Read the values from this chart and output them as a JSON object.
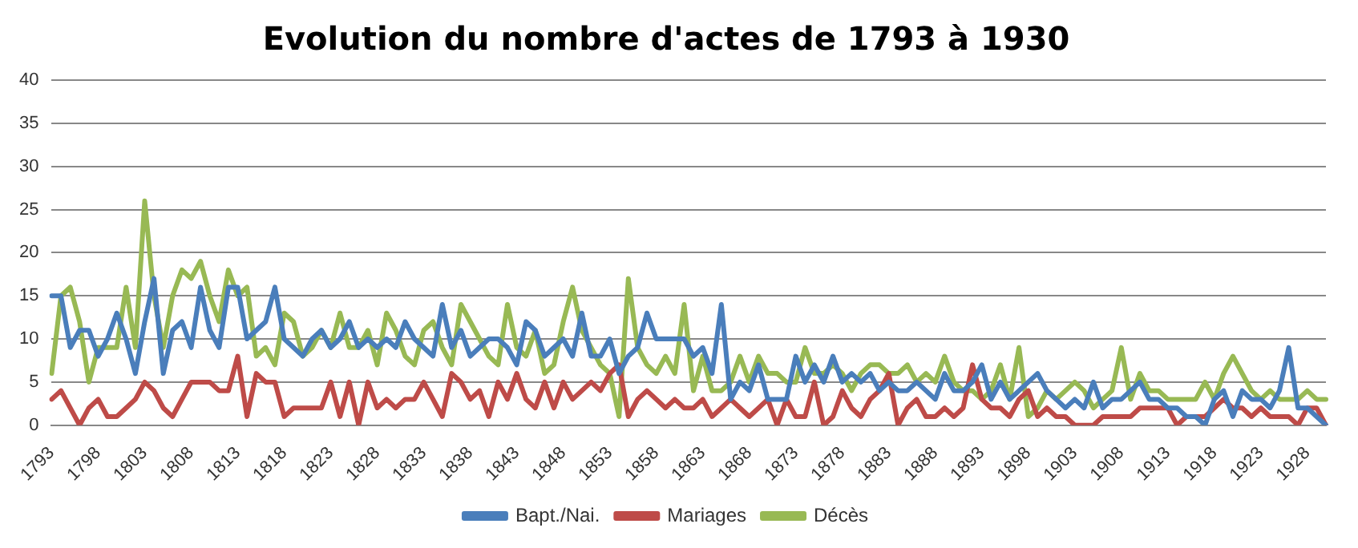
{
  "chart_data": {
    "type": "line",
    "title": "Evolution du nombre d'actes de 1793 à 1930",
    "categories": [
      "1793",
      null,
      null,
      null,
      null,
      "1798",
      null,
      null,
      null,
      null,
      "1803",
      null,
      null,
      null,
      null,
      "1808",
      null,
      null,
      null,
      null,
      "1813",
      null,
      null,
      null,
      null,
      "1818",
      null,
      null,
      null,
      null,
      "1823",
      null,
      null,
      null,
      null,
      "1828",
      null,
      null,
      null,
      null,
      "1833",
      null,
      null,
      null,
      null,
      "1838",
      null,
      null,
      null,
      null,
      "1843",
      null,
      null,
      null,
      null,
      "1848",
      null,
      null,
      null,
      null,
      "1853",
      null,
      null,
      null,
      null,
      "1858",
      null,
      null,
      null,
      null,
      "1863",
      null,
      null,
      null,
      null,
      "1868",
      null,
      null,
      null,
      null,
      "1873",
      null,
      null,
      null,
      null,
      "1878",
      null,
      null,
      null,
      null,
      "1883",
      null,
      null,
      null,
      null,
      "1888",
      null,
      null,
      null,
      null,
      "1893",
      null,
      null,
      null,
      null,
      "1898",
      null,
      null,
      null,
      null,
      "1903",
      null,
      null,
      null,
      null,
      "1908",
      null,
      null,
      null,
      null,
      "1913",
      null,
      null,
      null,
      null,
      "1918",
      null,
      null,
      null,
      null,
      "1923",
      null,
      null,
      null,
      null,
      "1928",
      null,
      null
    ],
    "series": [
      {
        "name": "Bapt./Nai.",
        "color": "#4a7ebb",
        "values": [
          15,
          15,
          9,
          11,
          11,
          8,
          10,
          13,
          10,
          6,
          12,
          17,
          6,
          11,
          12,
          9,
          16,
          11,
          9,
          16,
          16,
          10,
          11,
          12,
          16,
          10,
          9,
          8,
          10,
          11,
          9,
          10,
          12,
          9,
          10,
          9,
          10,
          9,
          12,
          10,
          9,
          8,
          14,
          9,
          11,
          8,
          9,
          10,
          10,
          9,
          7,
          12,
          11,
          8,
          9,
          10,
          8,
          13,
          8,
          8,
          10,
          6,
          8,
          9,
          13,
          10,
          10,
          10,
          10,
          8,
          9,
          6,
          14,
          3,
          5,
          4,
          7,
          3,
          3,
          3,
          8,
          5,
          7,
          5,
          8,
          5,
          6,
          5,
          6,
          4,
          5,
          4,
          4,
          5,
          4,
          3,
          6,
          4,
          4,
          5,
          7,
          3,
          5,
          3,
          4,
          5,
          6,
          4,
          3,
          2,
          3,
          2,
          5,
          2,
          3,
          3,
          4,
          5,
          3,
          3,
          2,
          2,
          1,
          1,
          0,
          3,
          4,
          1,
          4,
          3,
          3,
          2,
          4,
          9,
          2,
          2,
          1,
          0
        ]
      },
      {
        "name": "Mariages",
        "color": "#be4b48",
        "values": [
          3,
          4,
          2,
          0,
          2,
          3,
          1,
          1,
          2,
          3,
          5,
          4,
          2,
          1,
          3,
          5,
          5,
          5,
          4,
          4,
          8,
          1,
          6,
          5,
          5,
          1,
          2,
          2,
          2,
          2,
          5,
          1,
          5,
          0,
          5,
          2,
          3,
          2,
          3,
          3,
          5,
          3,
          1,
          6,
          5,
          3,
          4,
          1,
          5,
          3,
          6,
          3,
          2,
          5,
          2,
          5,
          3,
          4,
          5,
          4,
          6,
          7,
          1,
          3,
          4,
          3,
          2,
          3,
          2,
          2,
          3,
          1,
          2,
          3,
          2,
          1,
          2,
          3,
          0,
          3,
          1,
          1,
          5,
          0,
          1,
          4,
          2,
          1,
          3,
          4,
          6,
          0,
          2,
          3,
          1,
          1,
          2,
          1,
          2,
          7,
          3,
          2,
          2,
          1,
          3,
          4,
          1,
          2,
          1,
          1,
          0,
          0,
          0,
          1,
          1,
          1,
          1,
          2,
          2,
          2,
          2,
          0,
          1,
          1,
          1,
          2,
          3,
          2,
          2,
          1,
          2,
          1,
          1,
          1,
          0,
          2,
          2,
          0
        ]
      },
      {
        "name": "Décès",
        "color": "#98b954",
        "values": [
          6,
          15,
          16,
          12,
          5,
          9,
          9,
          9,
          16,
          9,
          26,
          15,
          9,
          15,
          18,
          17,
          19,
          15,
          12,
          18,
          15,
          16,
          8,
          9,
          7,
          13,
          12,
          8,
          9,
          11,
          9,
          13,
          9,
          9,
          11,
          7,
          13,
          11,
          8,
          7,
          11,
          12,
          9,
          7,
          14,
          12,
          10,
          8,
          7,
          14,
          9,
          8,
          11,
          6,
          7,
          12,
          16,
          11,
          9,
          7,
          6,
          1,
          17,
          9,
          7,
          6,
          8,
          6,
          14,
          4,
          8,
          4,
          4,
          5,
          8,
          5,
          8,
          6,
          6,
          5,
          5,
          9,
          6,
          6,
          7,
          6,
          4,
          6,
          7,
          7,
          6,
          6,
          7,
          5,
          6,
          5,
          8,
          5,
          4,
          4,
          3,
          4,
          7,
          3,
          9,
          1,
          2,
          4,
          3,
          4,
          5,
          4,
          2,
          3,
          4,
          9,
          3,
          6,
          4,
          4,
          3,
          3,
          3,
          3,
          5,
          3,
          6,
          8,
          6,
          4,
          3,
          4,
          3,
          3,
          3,
          4,
          3,
          3
        ]
      }
    ],
    "ylim": [
      0,
      40
    ],
    "yticks": [
      0,
      5,
      10,
      15,
      20,
      25,
      30,
      35,
      40
    ],
    "grid": "y",
    "legend": "bottom",
    "marker": "none",
    "line_style": "solid"
  }
}
